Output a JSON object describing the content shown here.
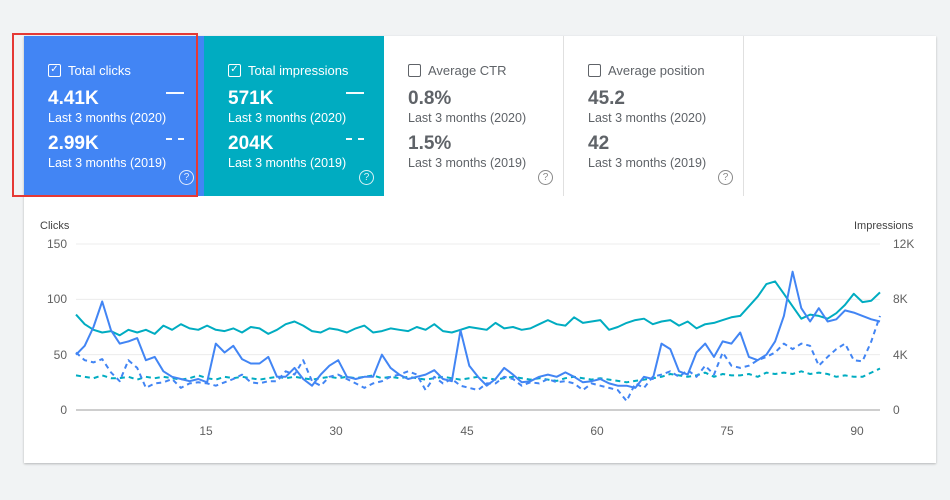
{
  "metrics": [
    {
      "id": "clicks",
      "label": "Total clicks",
      "checked": true,
      "value_2020": "4.41K",
      "period_2020": "Last 3 months (2020)",
      "value_2019": "2.99K",
      "period_2019": "Last 3 months (2019)"
    },
    {
      "id": "impressions",
      "label": "Total impressions",
      "checked": true,
      "value_2020": "571K",
      "period_2020": "Last 3 months (2020)",
      "value_2019": "204K",
      "period_2019": "Last 3 months (2019)"
    },
    {
      "id": "ctr",
      "label": "Average CTR",
      "checked": false,
      "value_2020": "0.8%",
      "period_2020": "Last 3 months (2020)",
      "value_2019": "1.5%",
      "period_2019": "Last 3 months (2019)"
    },
    {
      "id": "position",
      "label": "Average position",
      "checked": false,
      "value_2020": "45.2",
      "period_2020": "Last 3 months (2020)",
      "value_2019": "42",
      "period_2019": "Last 3 months (2019)"
    }
  ],
  "help_glyph": "?",
  "check_glyph": "✓",
  "colors": {
    "clicks": "#4285f4",
    "impressions": "#00acc1",
    "highlight": "#e53935"
  },
  "chart_data": {
    "type": "line",
    "ylabel_left": "Clicks",
    "ylabel_right": "Impressions",
    "left_ticks": [
      "150",
      "100",
      "50",
      "0"
    ],
    "right_ticks": [
      "12K",
      "8K",
      "4K",
      "0"
    ],
    "x_ticks": [
      "15",
      "30",
      "45",
      "60",
      "75",
      "90"
    ],
    "x_tick_values": [
      15,
      30,
      45,
      60,
      75,
      90
    ],
    "xlim": [
      1,
      93
    ],
    "ylim_left": [
      0,
      150
    ],
    "ylim_right": [
      0,
      12000
    ],
    "series": [
      {
        "axis": "left",
        "style": "solid",
        "color": "#4285f4",
        "values": [
          50,
          58,
          75,
          98,
          72,
          60,
          62,
          65,
          45,
          48,
          35,
          30,
          28,
          26,
          28,
          25,
          60,
          52,
          58,
          46,
          42,
          42,
          48,
          30,
          30,
          38,
          28,
          22,
          32,
          40,
          45,
          30,
          28,
          30,
          30,
          50,
          38,
          32,
          28,
          30,
          32,
          36,
          28,
          26,
          72,
          40,
          30,
          22,
          28,
          38,
          32,
          25,
          26,
          30,
          32,
          30,
          34,
          30,
          25,
          26,
          28,
          24,
          22,
          22,
          20,
          30,
          28,
          60,
          55,
          35,
          32,
          52,
          60,
          48,
          62,
          60,
          70,
          48,
          45,
          50,
          62,
          85,
          125,
          92,
          80,
          92,
          80,
          82,
          90,
          88,
          85,
          82,
          80
        ]
      },
      {
        "axis": "left",
        "style": "dashed",
        "color": "#4285f4",
        "values": [
          52,
          45,
          43,
          46,
          34,
          26,
          45,
          38,
          20,
          24,
          25,
          28,
          20,
          24,
          25,
          24,
          22,
          25,
          28,
          32,
          25,
          24,
          26,
          26,
          35,
          32,
          45,
          26,
          22,
          30,
          32,
          28,
          24,
          20,
          24,
          26,
          30,
          32,
          35,
          32,
          18,
          30,
          24,
          28,
          22,
          20,
          18,
          24,
          24,
          30,
          28,
          22,
          25,
          24,
          28,
          25,
          26,
          24,
          18,
          24,
          22,
          20,
          18,
          8,
          24,
          20,
          30,
          32,
          35,
          30,
          36,
          30,
          40,
          32,
          52,
          40,
          38,
          40,
          45,
          48,
          52,
          60,
          55,
          60,
          58,
          40,
          48,
          55,
          60,
          45,
          44,
          62,
          85
        ]
      },
      {
        "axis": "right",
        "style": "solid",
        "color": "#00acc1",
        "values": [
          6900,
          6200,
          5800,
          5600,
          5700,
          5400,
          5800,
          5600,
          5800,
          5500,
          6100,
          5800,
          6200,
          5900,
          5800,
          6100,
          5800,
          5700,
          5900,
          5600,
          6000,
          5900,
          5500,
          5800,
          6200,
          6400,
          6100,
          5700,
          5600,
          5900,
          5800,
          5600,
          5900,
          6100,
          5600,
          5700,
          5900,
          5800,
          5700,
          6000,
          5800,
          6200,
          5700,
          5600,
          5800,
          6000,
          5900,
          5800,
          6300,
          5900,
          6000,
          5800,
          5900,
          6200,
          6500,
          6200,
          6100,
          6700,
          6300,
          6400,
          6500,
          5800,
          6000,
          6300,
          6500,
          6600,
          6200,
          6400,
          6500,
          6100,
          6400,
          5900,
          6200,
          6300,
          6500,
          6700,
          6800,
          7500,
          8200,
          9100,
          9300,
          8400,
          7500,
          6600,
          6900,
          6800,
          6600,
          7000,
          7600,
          8400,
          7800,
          7900,
          8500
        ]
      },
      {
        "axis": "right",
        "style": "dashed",
        "color": "#00acc1",
        "values": [
          2500,
          2400,
          2300,
          2500,
          2300,
          2300,
          2400,
          2200,
          2400,
          2300,
          2400,
          2300,
          2200,
          2300,
          2500,
          2300,
          2200,
          2400,
          2300,
          2400,
          2300,
          2200,
          2300,
          2400,
          2300,
          2400,
          2300,
          2200,
          2300,
          2400,
          2300,
          2400,
          2300,
          2400,
          2500,
          2300,
          2400,
          2300,
          2400,
          2300,
          2200,
          2300,
          2400,
          2300,
          2200,
          2300,
          2400,
          2300,
          2200,
          2300,
          2400,
          2300,
          2200,
          2300,
          2200,
          2100,
          2300,
          2400,
          2300,
          2200,
          2300,
          2200,
          2100,
          2000,
          2100,
          2200,
          2300,
          2400,
          2600,
          2500,
          2400,
          2500,
          2700,
          2400,
          2600,
          2500,
          2500,
          2600,
          2400,
          2700,
          2600,
          2700,
          2600,
          2800,
          2600,
          2700,
          2600,
          2400,
          2500,
          2400,
          2400,
          2700,
          3000
        ]
      }
    ]
  }
}
